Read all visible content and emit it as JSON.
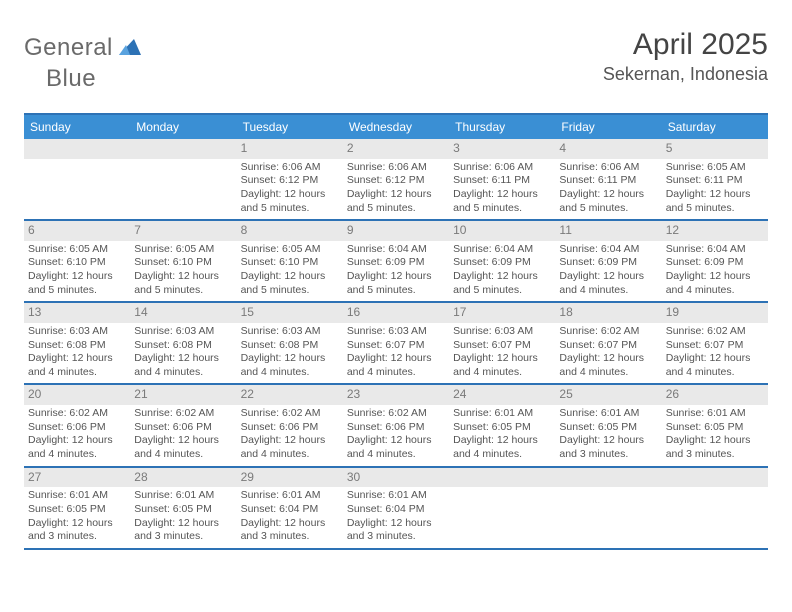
{
  "logo": {
    "text1": "General",
    "text2": "Blue",
    "shape_color": "#2d72b5"
  },
  "title": "April 2025",
  "location": "Sekernan, Indonesia",
  "colors": {
    "header_bar": "#3a8fd4",
    "rule": "#2d72b5",
    "daynum_bg": "#e9e9e9",
    "text_muted": "#7a7a7a",
    "text_body": "#555"
  },
  "days_of_week": [
    "Sunday",
    "Monday",
    "Tuesday",
    "Wednesday",
    "Thursday",
    "Friday",
    "Saturday"
  ],
  "weeks": [
    [
      null,
      null,
      {
        "n": "1",
        "sr": "6:06 AM",
        "ss": "6:12 PM",
        "dl": "12 hours and 5 minutes."
      },
      {
        "n": "2",
        "sr": "6:06 AM",
        "ss": "6:12 PM",
        "dl": "12 hours and 5 minutes."
      },
      {
        "n": "3",
        "sr": "6:06 AM",
        "ss": "6:11 PM",
        "dl": "12 hours and 5 minutes."
      },
      {
        "n": "4",
        "sr": "6:06 AM",
        "ss": "6:11 PM",
        "dl": "12 hours and 5 minutes."
      },
      {
        "n": "5",
        "sr": "6:05 AM",
        "ss": "6:11 PM",
        "dl": "12 hours and 5 minutes."
      }
    ],
    [
      {
        "n": "6",
        "sr": "6:05 AM",
        "ss": "6:10 PM",
        "dl": "12 hours and 5 minutes."
      },
      {
        "n": "7",
        "sr": "6:05 AM",
        "ss": "6:10 PM",
        "dl": "12 hours and 5 minutes."
      },
      {
        "n": "8",
        "sr": "6:05 AM",
        "ss": "6:10 PM",
        "dl": "12 hours and 5 minutes."
      },
      {
        "n": "9",
        "sr": "6:04 AM",
        "ss": "6:09 PM",
        "dl": "12 hours and 5 minutes."
      },
      {
        "n": "10",
        "sr": "6:04 AM",
        "ss": "6:09 PM",
        "dl": "12 hours and 5 minutes."
      },
      {
        "n": "11",
        "sr": "6:04 AM",
        "ss": "6:09 PM",
        "dl": "12 hours and 4 minutes."
      },
      {
        "n": "12",
        "sr": "6:04 AM",
        "ss": "6:09 PM",
        "dl": "12 hours and 4 minutes."
      }
    ],
    [
      {
        "n": "13",
        "sr": "6:03 AM",
        "ss": "6:08 PM",
        "dl": "12 hours and 4 minutes."
      },
      {
        "n": "14",
        "sr": "6:03 AM",
        "ss": "6:08 PM",
        "dl": "12 hours and 4 minutes."
      },
      {
        "n": "15",
        "sr": "6:03 AM",
        "ss": "6:08 PM",
        "dl": "12 hours and 4 minutes."
      },
      {
        "n": "16",
        "sr": "6:03 AM",
        "ss": "6:07 PM",
        "dl": "12 hours and 4 minutes."
      },
      {
        "n": "17",
        "sr": "6:03 AM",
        "ss": "6:07 PM",
        "dl": "12 hours and 4 minutes."
      },
      {
        "n": "18",
        "sr": "6:02 AM",
        "ss": "6:07 PM",
        "dl": "12 hours and 4 minutes."
      },
      {
        "n": "19",
        "sr": "6:02 AM",
        "ss": "6:07 PM",
        "dl": "12 hours and 4 minutes."
      }
    ],
    [
      {
        "n": "20",
        "sr": "6:02 AM",
        "ss": "6:06 PM",
        "dl": "12 hours and 4 minutes."
      },
      {
        "n": "21",
        "sr": "6:02 AM",
        "ss": "6:06 PM",
        "dl": "12 hours and 4 minutes."
      },
      {
        "n": "22",
        "sr": "6:02 AM",
        "ss": "6:06 PM",
        "dl": "12 hours and 4 minutes."
      },
      {
        "n": "23",
        "sr": "6:02 AM",
        "ss": "6:06 PM",
        "dl": "12 hours and 4 minutes."
      },
      {
        "n": "24",
        "sr": "6:01 AM",
        "ss": "6:05 PM",
        "dl": "12 hours and 4 minutes."
      },
      {
        "n": "25",
        "sr": "6:01 AM",
        "ss": "6:05 PM",
        "dl": "12 hours and 3 minutes."
      },
      {
        "n": "26",
        "sr": "6:01 AM",
        "ss": "6:05 PM",
        "dl": "12 hours and 3 minutes."
      }
    ],
    [
      {
        "n": "27",
        "sr": "6:01 AM",
        "ss": "6:05 PM",
        "dl": "12 hours and 3 minutes."
      },
      {
        "n": "28",
        "sr": "6:01 AM",
        "ss": "6:05 PM",
        "dl": "12 hours and 3 minutes."
      },
      {
        "n": "29",
        "sr": "6:01 AM",
        "ss": "6:04 PM",
        "dl": "12 hours and 3 minutes."
      },
      {
        "n": "30",
        "sr": "6:01 AM",
        "ss": "6:04 PM",
        "dl": "12 hours and 3 minutes."
      },
      null,
      null,
      null
    ]
  ],
  "labels": {
    "sunrise": "Sunrise:",
    "sunset": "Sunset:",
    "daylight": "Daylight:"
  }
}
